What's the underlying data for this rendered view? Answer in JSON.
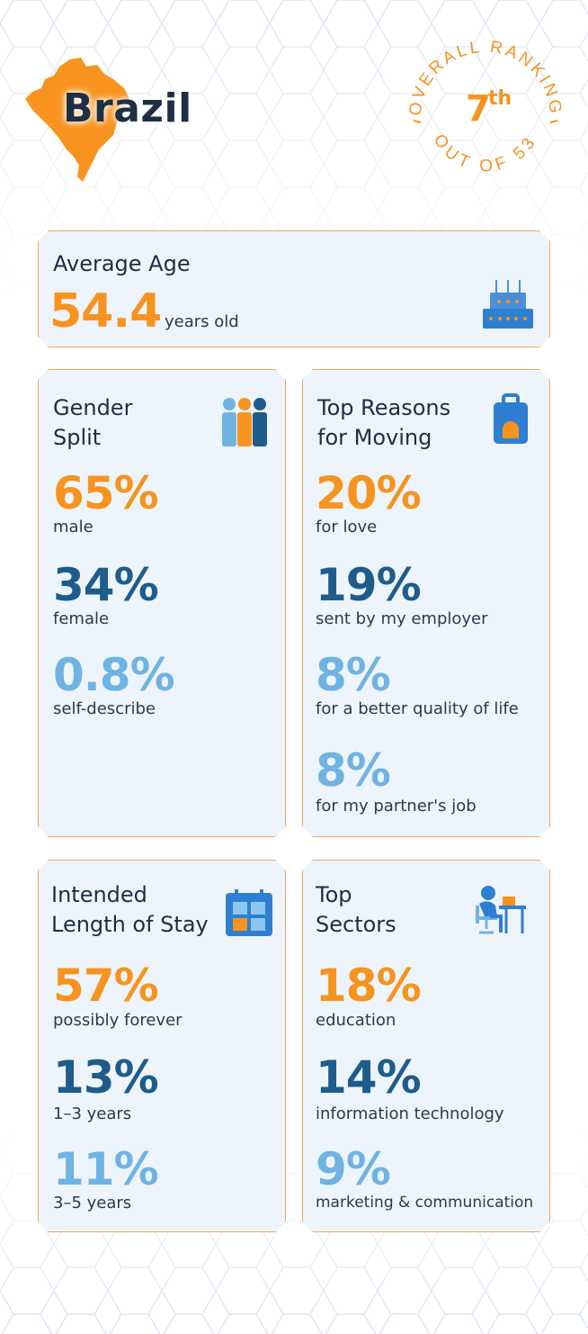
{
  "header": {
    "country": "Brazil",
    "ranking": {
      "label": "OVERALL RANKING",
      "rank": "7",
      "suffix": "th",
      "out_of": "OUT OF 53"
    }
  },
  "average_age": {
    "title": "Average Age",
    "value": "54.4",
    "unit": "years old"
  },
  "gender_split": {
    "title": "Gender\nSplit",
    "items": [
      {
        "value": "65%",
        "label": "male"
      },
      {
        "value": "34%",
        "label": "female"
      },
      {
        "value": "0.8%",
        "label": "self-describe"
      }
    ]
  },
  "reasons": {
    "title": "Top Reasons\nfor Moving",
    "items": [
      {
        "value": "20%",
        "label": "for love"
      },
      {
        "value": "19%",
        "label": "sent by my employer"
      },
      {
        "value": "8%",
        "label": "for a better quality of life"
      },
      {
        "value": "8%",
        "label": "for my partner's job"
      }
    ]
  },
  "stay": {
    "title": "Intended\nLength of Stay",
    "items": [
      {
        "value": "57%",
        "label": "possibly forever"
      },
      {
        "value": "13%",
        "label": "1–3 years"
      },
      {
        "value": "11%",
        "label": "3–5 years"
      }
    ]
  },
  "sectors": {
    "title": "Top\nSectors",
    "items": [
      {
        "value": "18%",
        "label": "education"
      },
      {
        "value": "14%",
        "label": "information technology"
      },
      {
        "value": "9%",
        "label": "marketing & communication"
      }
    ]
  },
  "colors": {
    "orange": "#f7931e",
    "dark_blue": "#1e5c8c",
    "light_blue": "#6fb3e3",
    "card_bg": "#eef4fb",
    "border": "#f3a65a"
  },
  "icons": [
    "brazil-map-icon",
    "birthday-cake-icon",
    "people-icon",
    "suitcase-icon",
    "calendar-icon",
    "person-at-desk-icon"
  ]
}
